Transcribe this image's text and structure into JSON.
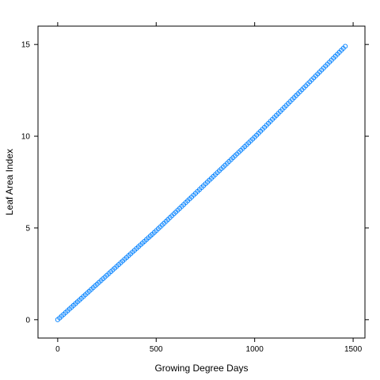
{
  "chart_data": {
    "type": "scatter",
    "title": "",
    "xlabel": "Growing Degree Days",
    "ylabel": "Leaf Area Index",
    "xlim": [
      -100,
      1560
    ],
    "ylim": [
      -1,
      16
    ],
    "xticks": [
      0,
      500,
      1000,
      1500
    ],
    "yticks": [
      0,
      5,
      10,
      15
    ],
    "grid": false,
    "legend": "none",
    "point_color": "#0080ff",
    "marker": "open-circle",
    "series": [
      {
        "x_start": 0,
        "x_end": 1460,
        "x_step": 10,
        "fit": {
          "y_at_0": 0,
          "y_at_500": 4.85,
          "y_at_1000": 9.95,
          "y_at_1460": 14.9
        }
      }
    ]
  }
}
